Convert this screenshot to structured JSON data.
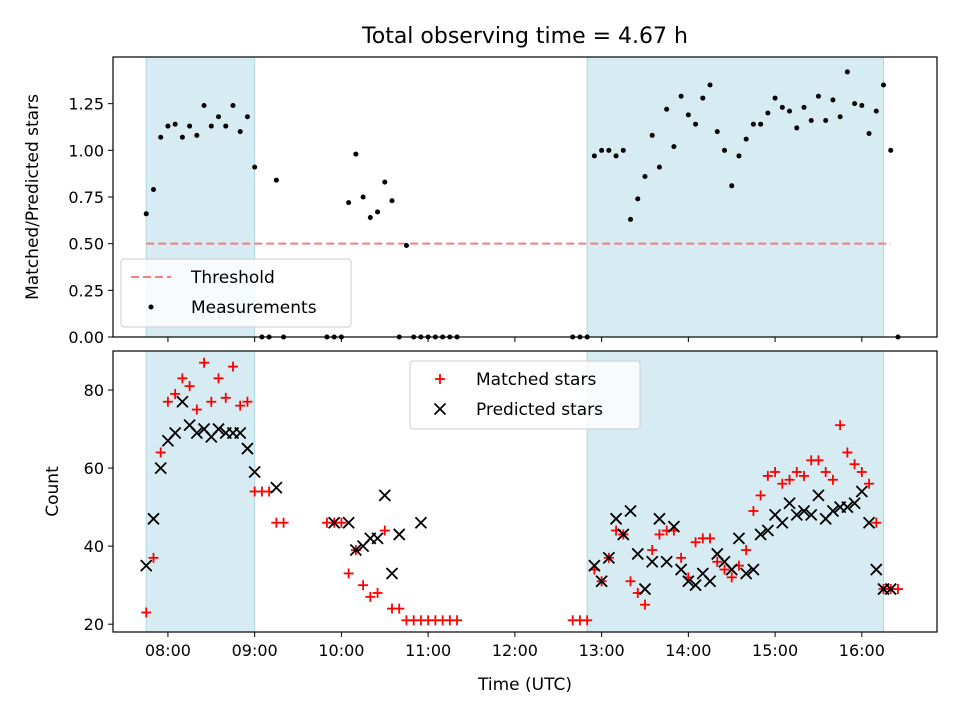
{
  "title": "Total observing time = 4.67 h",
  "colors": {
    "band": "#add8e6",
    "threshold": "#f08080",
    "matched": "#ff0000",
    "predicted": "#000000",
    "measurement": "#000000"
  },
  "chart_data": [
    {
      "type": "scatter",
      "ylabel": "Matched/Predicted stars",
      "xlabel": "",
      "xlim": [
        "07:22",
        "16:52"
      ],
      "ylim": [
        0,
        1.5
      ],
      "yticks": [
        "0.00",
        "0.25",
        "0.50",
        "0.75",
        "1.00",
        "1.25"
      ],
      "bands": [
        [
          "07:45",
          "09:00"
        ],
        [
          "12:50",
          "16:15"
        ]
      ],
      "threshold": 0.5,
      "threshold_range": [
        "07:45",
        "16:20"
      ],
      "legend": {
        "position": "lower-left",
        "items": [
          "Threshold",
          "Measurements"
        ]
      },
      "series": [
        {
          "name": "Measurements",
          "x": [
            "07:45",
            "07:50",
            "07:55",
            "08:00",
            "08:05",
            "08:10",
            "08:15",
            "08:20",
            "08:25",
            "08:30",
            "08:35",
            "08:40",
            "08:45",
            "08:50",
            "08:55",
            "09:00",
            "09:05",
            "09:10",
            "09:15",
            "09:20",
            "09:50",
            "09:55",
            "10:00",
            "10:05",
            "10:10",
            "10:15",
            "10:20",
            "10:25",
            "10:30",
            "10:35",
            "10:40",
            "10:45",
            "10:50",
            "10:55",
            "11:00",
            "11:05",
            "11:10",
            "11:15",
            "11:20",
            "12:40",
            "12:45",
            "12:50",
            "12:55",
            "13:00",
            "13:05",
            "13:10",
            "13:15",
            "13:20",
            "13:25",
            "13:30",
            "13:35",
            "13:40",
            "13:45",
            "13:50",
            "13:55",
            "14:00",
            "14:05",
            "14:10",
            "14:15",
            "14:20",
            "14:25",
            "14:30",
            "14:35",
            "14:40",
            "14:45",
            "14:50",
            "14:55",
            "15:00",
            "15:05",
            "15:10",
            "15:15",
            "15:20",
            "15:25",
            "15:30",
            "15:35",
            "15:40",
            "15:45",
            "15:50",
            "15:55",
            "16:00",
            "16:05",
            "16:10",
            "16:15",
            "16:20",
            "16:25"
          ],
          "y": [
            0.66,
            0.79,
            1.07,
            1.13,
            1.14,
            1.07,
            1.13,
            1.08,
            1.24,
            1.13,
            1.18,
            1.13,
            1.24,
            1.1,
            1.18,
            0.91,
            0.0,
            0.0,
            0.84,
            0.0,
            0.0,
            0.0,
            0.0,
            0.72,
            0.98,
            0.75,
            0.64,
            0.67,
            0.83,
            0.73,
            0.0,
            0.49,
            0.0,
            0.0,
            0.0,
            0.0,
            0.0,
            0.0,
            0.0,
            0.0,
            0.0,
            0.0,
            0.97,
            1.0,
            1.0,
            0.97,
            1.0,
            0.63,
            0.74,
            0.86,
            1.08,
            0.91,
            1.22,
            1.02,
            1.29,
            1.19,
            1.14,
            1.28,
            1.35,
            1.1,
            1.0,
            0.81,
            0.97,
            1.06,
            1.14,
            1.14,
            1.2,
            1.28,
            1.23,
            1.21,
            1.12,
            1.23,
            1.16,
            1.29,
            1.16,
            1.27,
            1.18,
            1.42,
            1.25,
            1.24,
            1.09,
            1.21,
            1.35,
            1.0,
            0.0
          ]
        }
      ]
    },
    {
      "type": "scatter",
      "ylabel": "Count",
      "xlabel": "Time (UTC)",
      "xlim": [
        "07:22",
        "16:52"
      ],
      "ylim": [
        18,
        90
      ],
      "yticks": [
        "20",
        "40",
        "60",
        "80"
      ],
      "xticks": [
        "08:00",
        "09:00",
        "10:00",
        "11:00",
        "12:00",
        "13:00",
        "14:00",
        "15:00",
        "16:00"
      ],
      "bands": [
        [
          "07:45",
          "09:00"
        ],
        [
          "12:50",
          "16:15"
        ]
      ],
      "legend": {
        "position": "upper-center",
        "items": [
          "Matched stars",
          "Predicted stars"
        ]
      },
      "series": [
        {
          "name": "Matched stars",
          "x": [
            "07:45",
            "07:50",
            "07:55",
            "08:00",
            "08:05",
            "08:10",
            "08:15",
            "08:20",
            "08:25",
            "08:30",
            "08:35",
            "08:40",
            "08:45",
            "08:50",
            "08:55",
            "09:00",
            "09:05",
            "09:10",
            "09:15",
            "09:20",
            "09:50",
            "09:55",
            "10:00",
            "10:05",
            "10:10",
            "10:15",
            "10:20",
            "10:25",
            "10:30",
            "10:35",
            "10:40",
            "10:45",
            "10:50",
            "10:55",
            "11:00",
            "11:05",
            "11:10",
            "11:15",
            "11:20",
            "12:40",
            "12:45",
            "12:50",
            "12:55",
            "13:00",
            "13:05",
            "13:10",
            "13:15",
            "13:20",
            "13:25",
            "13:30",
            "13:35",
            "13:40",
            "13:45",
            "13:50",
            "13:55",
            "14:00",
            "14:05",
            "14:10",
            "14:15",
            "14:20",
            "14:25",
            "14:30",
            "14:35",
            "14:40",
            "14:45",
            "14:50",
            "14:55",
            "15:00",
            "15:05",
            "15:10",
            "15:15",
            "15:20",
            "15:25",
            "15:30",
            "15:35",
            "15:40",
            "15:45",
            "15:50",
            "15:55",
            "16:00",
            "16:05",
            "16:10",
            "16:15",
            "16:20",
            "16:25"
          ],
          "y": [
            23,
            37,
            64,
            77,
            79,
            83,
            81,
            75,
            87,
            77,
            83,
            78,
            86,
            76,
            77,
            54,
            54,
            54,
            46,
            46,
            46,
            46,
            46,
            33,
            39,
            30,
            27,
            28,
            44,
            24,
            24,
            21,
            21,
            21,
            21,
            21,
            21,
            21,
            21,
            21,
            21,
            21,
            34,
            31,
            37,
            44,
            43,
            31,
            28,
            25,
            39,
            43,
            44,
            44,
            37,
            32,
            41,
            42,
            42,
            36,
            34,
            32,
            35,
            39,
            49,
            53,
            58,
            59,
            56,
            57,
            59,
            58,
            62,
            62,
            59,
            57,
            71,
            64,
            61,
            59,
            56,
            46,
            29,
            29,
            29
          ]
        },
        {
          "name": "Predicted stars",
          "x": [
            "07:45",
            "07:50",
            "07:55",
            "08:00",
            "08:05",
            "08:10",
            "08:15",
            "08:20",
            "08:25",
            "08:30",
            "08:35",
            "08:40",
            "08:45",
            "08:50",
            "08:55",
            "09:00",
            "09:15",
            "09:55",
            "10:05",
            "10:10",
            "10:15",
            "10:20",
            "10:25",
            "10:30",
            "10:35",
            "10:40",
            "10:55",
            "12:55",
            "13:00",
            "13:05",
            "13:10",
            "13:15",
            "13:20",
            "13:25",
            "13:30",
            "13:35",
            "13:40",
            "13:45",
            "13:50",
            "13:55",
            "14:00",
            "14:05",
            "14:10",
            "14:15",
            "14:20",
            "14:25",
            "14:30",
            "14:35",
            "14:40",
            "14:45",
            "14:50",
            "14:55",
            "15:00",
            "15:05",
            "15:10",
            "15:15",
            "15:20",
            "15:25",
            "15:30",
            "15:35",
            "15:40",
            "15:45",
            "15:50",
            "15:55",
            "16:00",
            "16:05",
            "16:10",
            "16:15",
            "16:20"
          ],
          "y": [
            35,
            47,
            60,
            67,
            69,
            77,
            71,
            69,
            70,
            68,
            70,
            69,
            69,
            69,
            65,
            59,
            55,
            46,
            46,
            39,
            40,
            42,
            42,
            53,
            33,
            43,
            46,
            35,
            31,
            37,
            47,
            43,
            49,
            38,
            29,
            36,
            47,
            36,
            45,
            34,
            31,
            30,
            33,
            31,
            38,
            36,
            34,
            42,
            33,
            34,
            43,
            44,
            48,
            46,
            51,
            48,
            49,
            48,
            53,
            47,
            49,
            50,
            50,
            51,
            54,
            46,
            34,
            29,
            29
          ]
        }
      ]
    }
  ]
}
